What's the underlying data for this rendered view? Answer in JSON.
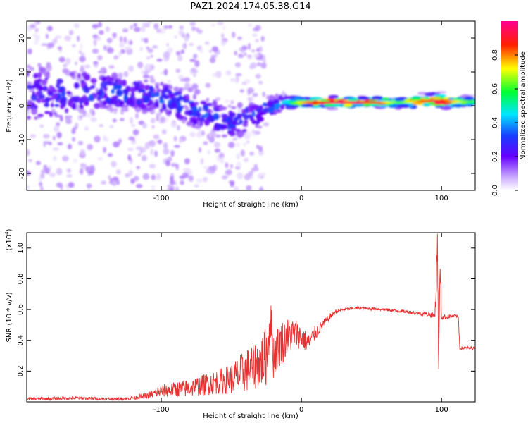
{
  "title": "PAZ1.2024.174.05.38.G14",
  "chart_data": [
    {
      "type": "heatmap",
      "title": "PAZ1.2024.174.05.38.G14",
      "xlabel": "Height of straight line (km)",
      "ylabel": "Frequency (Hz)",
      "xlim": [
        -196,
        124
      ],
      "ylim": [
        -25,
        25
      ],
      "x_ticks": [
        -100,
        0,
        100
      ],
      "y_ticks": [
        -20,
        -10,
        0,
        10,
        20
      ],
      "colorbar": {
        "label": "Normalized spectral amplitude",
        "range": [
          0.0,
          1.0
        ],
        "ticks": [
          0.0,
          0.2,
          0.4,
          0.6,
          0.8
        ],
        "colormap": [
          "#ffffff",
          "#7b00e6",
          "#2020ff",
          "#00e0ff",
          "#00ff40",
          "#ffff00",
          "#ff0000",
          "#ff0090"
        ]
      },
      "ridge": [
        {
          "x": -190,
          "freq": 3,
          "amp": 0.25,
          "spread": 7
        },
        {
          "x": -160,
          "freq": 4,
          "amp": 0.3,
          "spread": 5
        },
        {
          "x": -130,
          "freq": 4,
          "amp": 0.3,
          "spread": 4
        },
        {
          "x": -110,
          "freq": 3,
          "amp": 0.3,
          "spread": 4
        },
        {
          "x": -90,
          "freq": 1,
          "amp": 0.3,
          "spread": 4
        },
        {
          "x": -70,
          "freq": -2,
          "amp": 0.3,
          "spread": 4
        },
        {
          "x": -50,
          "freq": -5,
          "amp": 0.3,
          "spread": 4
        },
        {
          "x": -35,
          "freq": -3,
          "amp": 0.3,
          "spread": 4
        },
        {
          "x": -20,
          "freq": 0,
          "amp": 0.35,
          "spread": 2
        },
        {
          "x": -10,
          "freq": 1,
          "amp": 0.45,
          "spread": 1.5
        },
        {
          "x": 0,
          "freq": 1,
          "amp": 0.75,
          "spread": 1
        },
        {
          "x": 20,
          "freq": 1,
          "amp": 0.95,
          "spread": 1
        },
        {
          "x": 50,
          "freq": 1,
          "amp": 0.9,
          "spread": 1
        },
        {
          "x": 70,
          "freq": 1,
          "amp": 0.6,
          "spread": 1
        },
        {
          "x": 95,
          "freq": 1.5,
          "amp": 0.95,
          "spread": 1.5
        },
        {
          "x": 124,
          "freq": 1,
          "amp": 0.55,
          "spread": 1
        }
      ]
    },
    {
      "type": "line",
      "xlabel": "Height of straight line (km)",
      "ylabel": "SNR (10 * v/v)",
      "y_multiplier": "(x10",
      "y_multiplier_exp": "4",
      "y_multiplier_close": ")",
      "xlim": [
        -196,
        124
      ],
      "ylim": [
        0.0,
        1.1
      ],
      "x_ticks": [
        -100,
        0,
        100
      ],
      "y_ticks": [
        0.2,
        0.4,
        0.6,
        0.8,
        1.0
      ],
      "series": [
        {
          "color": "#e83030",
          "x": [
            -196,
            -180,
            -160,
            -140,
            -125,
            -110,
            -100,
            -90,
            -80,
            -70,
            -60,
            -50,
            -40,
            -30,
            -25,
            -22,
            -20,
            -15,
            -10,
            -5,
            0,
            5,
            10,
            15,
            20,
            25,
            30,
            40,
            50,
            60,
            70,
            80,
            90,
            95,
            96,
            97,
            98,
            99,
            100,
            110,
            112,
            113,
            124
          ],
          "y": [
            0.02,
            0.02,
            0.025,
            0.02,
            0.02,
            0.04,
            0.07,
            0.08,
            0.09,
            0.11,
            0.13,
            0.15,
            0.2,
            0.25,
            0.3,
            0.55,
            0.3,
            0.38,
            0.42,
            0.45,
            0.42,
            0.38,
            0.45,
            0.5,
            0.55,
            0.59,
            0.6,
            0.61,
            0.605,
            0.6,
            0.59,
            0.58,
            0.57,
            0.56,
            0.7,
            1.05,
            0.2,
            0.9,
            0.55,
            0.56,
            0.55,
            0.35,
            0.35
          ],
          "noise": [
            0.01,
            0.01,
            0.01,
            0.01,
            0.01,
            0.02,
            0.04,
            0.05,
            0.06,
            0.07,
            0.08,
            0.1,
            0.14,
            0.16,
            0.2,
            0.15,
            0.15,
            0.15,
            0.13,
            0.1,
            0.08,
            0.06,
            0.05,
            0.03,
            0.02,
            0.015,
            0.01,
            0.01,
            0.01,
            0.01,
            0.01,
            0.012,
            0.015,
            0.02,
            0.1,
            0.1,
            0.1,
            0.1,
            0.02,
            0.01,
            0.01,
            0.01,
            0.01
          ]
        }
      ]
    }
  ]
}
